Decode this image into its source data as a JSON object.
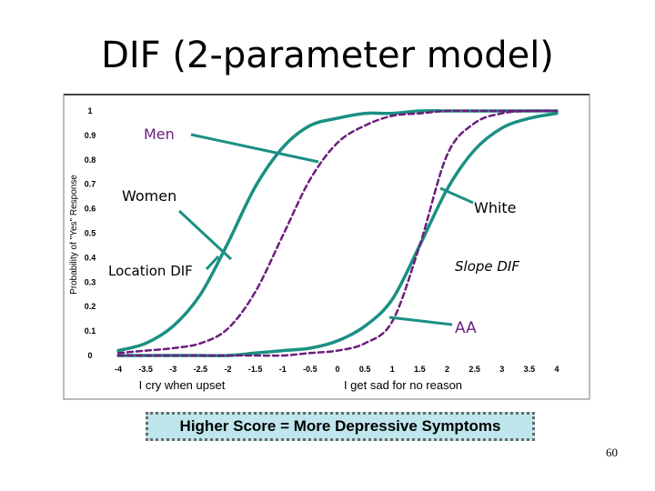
{
  "slide": {
    "title": "DIF (2-parameter model)",
    "footer": "Higher Score = More Depressive Symptoms",
    "page_number": "60"
  },
  "chart_data": {
    "type": "line",
    "ylabel": "Probability of \"Yes\" Response",
    "xlabel_left": "I cry when upset",
    "xlabel_right": "I get sad for no reason",
    "xlim": [
      -4,
      4
    ],
    "ylim": [
      0,
      1
    ],
    "x_ticks": [
      "-4",
      "-3.5",
      "-3",
      "-2.5",
      "-2",
      "-1.5",
      "-1",
      "-0.5",
      "0",
      "0.5",
      "1",
      "1.5",
      "2",
      "2.5",
      "3",
      "3.5",
      "4"
    ],
    "y_ticks": [
      "0",
      "0.1",
      "0.2",
      "0.3",
      "0.4",
      "0.5",
      "0.6",
      "0.7",
      "0.8",
      "0.9",
      "1"
    ],
    "colors": {
      "solid": "#1a9082",
      "dashed": "#6b1f7b"
    },
    "series": [
      {
        "name": "Men",
        "item": "I cry when upset",
        "style": "solid",
        "x": [
          -4,
          -3.5,
          -3,
          -2.5,
          -2,
          -1.5,
          -1,
          -0.5,
          0,
          0.5,
          1,
          1.5,
          2,
          2.5,
          3,
          3.5,
          4
        ],
        "y": [
          0.02,
          0.05,
          0.12,
          0.25,
          0.46,
          0.69,
          0.85,
          0.94,
          0.97,
          0.99,
          0.99,
          1,
          1,
          1,
          1,
          1,
          1
        ]
      },
      {
        "name": "Women",
        "item": "I cry when upset",
        "style": "dashed",
        "x": [
          -4,
          -3.5,
          -3,
          -2.5,
          -2,
          -1.5,
          -1,
          -0.5,
          0,
          0.5,
          1,
          1.5,
          2,
          2.5,
          3,
          3.5,
          4
        ],
        "y": [
          0.01,
          0.02,
          0.03,
          0.05,
          0.11,
          0.26,
          0.49,
          0.72,
          0.87,
          0.94,
          0.98,
          0.99,
          1,
          1,
          1,
          1,
          1
        ]
      },
      {
        "name": "White",
        "item": "I get sad for no reason",
        "style": "solid",
        "x": [
          -4,
          -3.5,
          -3,
          -2.5,
          -2,
          -1.5,
          -1,
          -0.5,
          0,
          0.5,
          1,
          1.5,
          2,
          2.5,
          3,
          3.5,
          4
        ],
        "y": [
          0,
          0,
          0,
          0,
          0,
          0.01,
          0.02,
          0.03,
          0.06,
          0.12,
          0.23,
          0.45,
          0.68,
          0.84,
          0.93,
          0.97,
          0.99
        ]
      },
      {
        "name": "AA",
        "item": "I get sad for no reason",
        "style": "dashed",
        "x": [
          -4,
          -3.5,
          -3,
          -2.5,
          -2,
          -1.5,
          -1,
          -0.5,
          0,
          0.5,
          1,
          1.5,
          2,
          2.5,
          3,
          3.5,
          4
        ],
        "y": [
          0,
          0,
          0,
          0,
          0,
          0,
          0,
          0.01,
          0.02,
          0.05,
          0.14,
          0.45,
          0.82,
          0.95,
          0.99,
          1,
          1
        ]
      }
    ],
    "annotations": {
      "men": "Men",
      "women": "Women",
      "white": "White",
      "aa": "AA",
      "location_dif": "Location DIF",
      "slope_dif": "Slope DIF"
    }
  }
}
